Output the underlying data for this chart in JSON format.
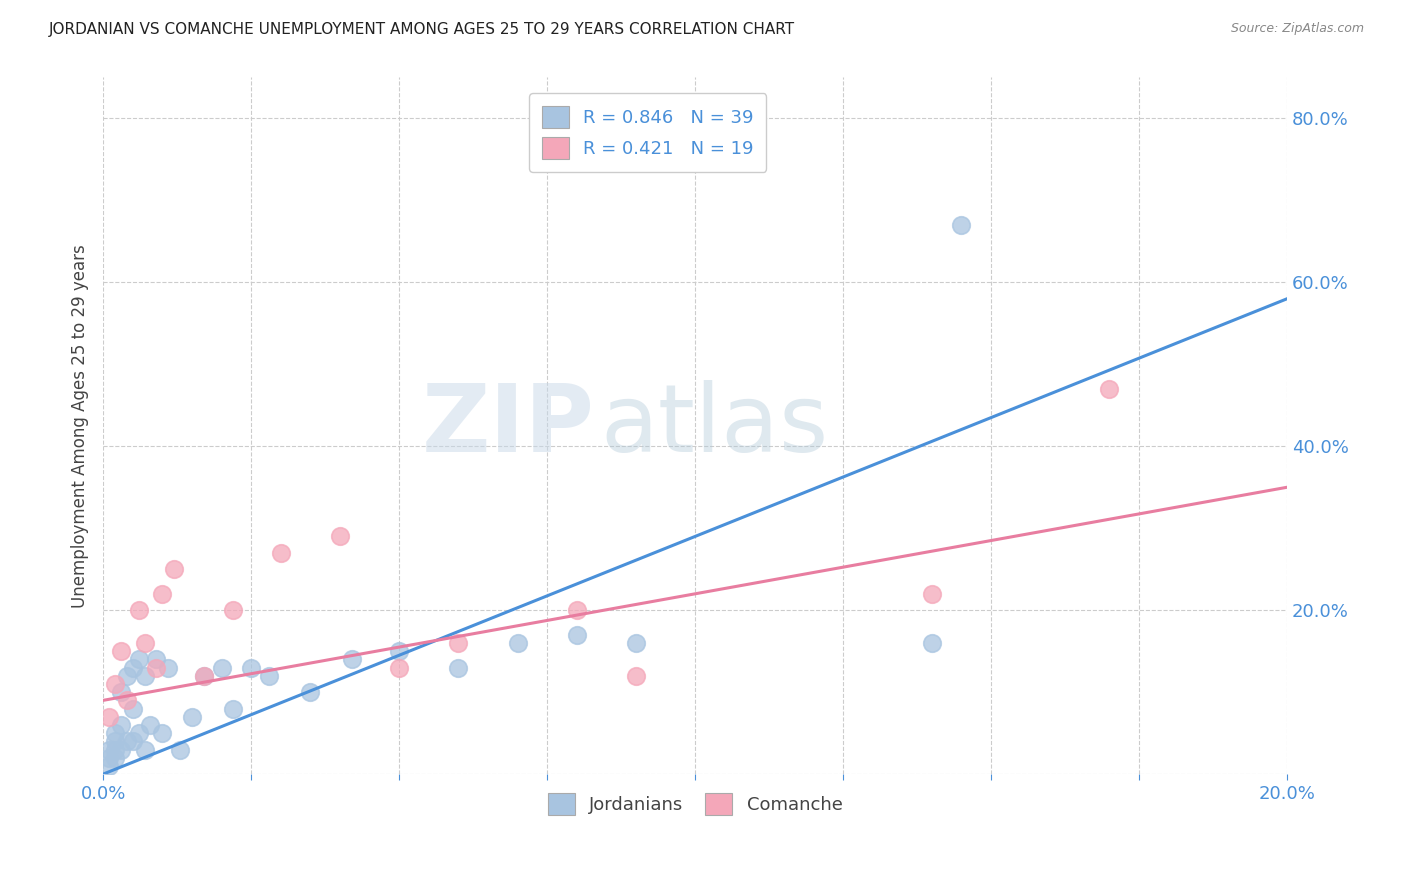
{
  "title": "JORDANIAN VS COMANCHE UNEMPLOYMENT AMONG AGES 25 TO 29 YEARS CORRELATION CHART",
  "source": "Source: ZipAtlas.com",
  "ylabel": "Unemployment Among Ages 25 to 29 years",
  "xlabel": "",
  "xlim": [
    0.0,
    0.2
  ],
  "ylim": [
    0.0,
    0.85
  ],
  "ytick_positions": [
    0.0,
    0.2,
    0.4,
    0.6,
    0.8
  ],
  "xtick_positions": [
    0.0,
    0.025,
    0.05,
    0.075,
    0.1,
    0.125,
    0.15,
    0.175,
    0.2
  ],
  "xtick_labels": [
    "0.0%",
    "",
    "",
    "",
    "",
    "",
    "",
    "",
    "20.0%"
  ],
  "ytick_labels": [
    "",
    "20.0%",
    "40.0%",
    "60.0%",
    "80.0%"
  ],
  "jordanian_color": "#a8c4e0",
  "comanche_color": "#f4a7b9",
  "jordanian_line_color": "#4a90d9",
  "comanche_line_color": "#e87da0",
  "R_jordanian": 0.846,
  "N_jordanian": 39,
  "R_comanche": 0.421,
  "N_comanche": 19,
  "background_color": "#ffffff",
  "watermark_zip": "ZIP",
  "watermark_atlas": "atlas",
  "jordanian_x": [
    0.001,
    0.001,
    0.001,
    0.002,
    0.002,
    0.002,
    0.002,
    0.003,
    0.003,
    0.003,
    0.004,
    0.004,
    0.005,
    0.005,
    0.005,
    0.006,
    0.006,
    0.007,
    0.007,
    0.008,
    0.009,
    0.01,
    0.011,
    0.013,
    0.015,
    0.017,
    0.02,
    0.022,
    0.025,
    0.028,
    0.035,
    0.042,
    0.05,
    0.06,
    0.07,
    0.08,
    0.09,
    0.14,
    0.145
  ],
  "jordanian_y": [
    0.01,
    0.02,
    0.03,
    0.02,
    0.03,
    0.04,
    0.05,
    0.03,
    0.06,
    0.1,
    0.04,
    0.12,
    0.04,
    0.08,
    0.13,
    0.05,
    0.14,
    0.03,
    0.12,
    0.06,
    0.14,
    0.05,
    0.13,
    0.03,
    0.07,
    0.12,
    0.13,
    0.08,
    0.13,
    0.12,
    0.1,
    0.14,
    0.15,
    0.13,
    0.16,
    0.17,
    0.16,
    0.16,
    0.67
  ],
  "comanche_x": [
    0.001,
    0.002,
    0.003,
    0.004,
    0.006,
    0.007,
    0.009,
    0.01,
    0.012,
    0.017,
    0.022,
    0.03,
    0.04,
    0.05,
    0.06,
    0.08,
    0.09,
    0.14,
    0.17
  ],
  "comanche_y": [
    0.07,
    0.11,
    0.15,
    0.09,
    0.2,
    0.16,
    0.13,
    0.22,
    0.25,
    0.12,
    0.2,
    0.27,
    0.29,
    0.13,
    0.16,
    0.2,
    0.12,
    0.22,
    0.47
  ],
  "jord_line_x0": 0.0,
  "jord_line_y0": 0.0,
  "jord_line_x1": 0.2,
  "jord_line_y1": 0.58,
  "com_line_x0": 0.0,
  "com_line_y0": 0.09,
  "com_line_x1": 0.2,
  "com_line_y1": 0.35
}
